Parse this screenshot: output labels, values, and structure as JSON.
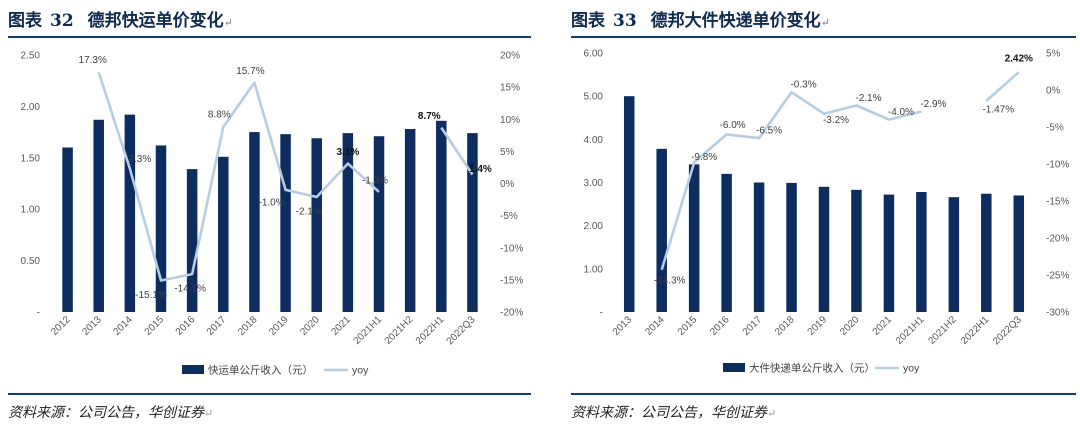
{
  "figures": [
    {
      "id": "fig32",
      "label": "图表",
      "number": "32",
      "title": "德邦快运单价变化",
      "source": "资料来源：公司公告，华创证券",
      "return_mark": "↵"
    },
    {
      "id": "fig33",
      "label": "图表",
      "number": "33",
      "title": "德邦大件快递单价变化",
      "source": "资料来源：公司公告，华创证券",
      "return_mark": "↵"
    }
  ],
  "chart_data": [
    {
      "type": "bar",
      "secondary_type": "line",
      "categories": [
        "2012",
        "2013",
        "2014",
        "2015",
        "2016",
        "2017",
        "2018",
        "2019",
        "2020",
        "2021",
        "2021H1",
        "2021H2",
        "2022H1",
        "2022Q3"
      ],
      "series": [
        {
          "name": "快运单公斤收入（元）",
          "axis": "left",
          "type": "bar",
          "values": [
            1.6,
            1.87,
            1.92,
            1.62,
            1.39,
            1.51,
            1.75,
            1.73,
            1.69,
            1.74,
            1.71,
            1.78,
            1.86,
            1.74
          ]
        },
        {
          "name": "yoy",
          "axis": "right",
          "type": "line",
          "unit": "%",
          "values": [
            null,
            17.3,
            2.3,
            -15.1,
            -14.1,
            8.8,
            15.7,
            -1.0,
            -2.1,
            3.1,
            -1.3,
            null,
            8.7,
            1.4
          ],
          "segments": [
            [
              1,
              10
            ],
            [
              12,
              13
            ]
          ]
        }
      ],
      "data_labels": [
        {
          "index": 1,
          "text": "17.3%",
          "bold": false
        },
        {
          "index": 2,
          "text": "2.3%",
          "bold": false
        },
        {
          "index": 3,
          "text": "-15.1%",
          "bold": false
        },
        {
          "index": 4,
          "text": "-14.1%",
          "bold": false
        },
        {
          "index": 5,
          "text": "8.8%",
          "bold": false
        },
        {
          "index": 6,
          "text": "15.7%",
          "bold": false
        },
        {
          "index": 7,
          "text": "-1.0%",
          "bold": false
        },
        {
          "index": 8,
          "text": "-2.1%",
          "bold": false
        },
        {
          "index": 9,
          "text": "3.1%",
          "bold": true
        },
        {
          "index": 10,
          "text": "-1.3%",
          "bold": false
        },
        {
          "index": 12,
          "text": "8.7%",
          "bold": true
        },
        {
          "index": 13,
          "text": "1.4%",
          "bold": true
        }
      ],
      "y_left": {
        "min": 0,
        "max": 2.5,
        "ticks": [
          "-",
          "0.50",
          "1.00",
          "1.50",
          "2.00",
          "2.50"
        ]
      },
      "y_right": {
        "min": -20,
        "max": 20,
        "ticks": [
          "-20%",
          "-15%",
          "-10%",
          "-5%",
          "0%",
          "5%",
          "10%",
          "15%",
          "20%"
        ]
      },
      "legend": {
        "bar": "快运单公斤收入（元）",
        "line": "yoy"
      },
      "colors": {
        "bar": "#0d2d5e",
        "line": "#b6cde3"
      }
    },
    {
      "type": "bar",
      "secondary_type": "line",
      "categories": [
        "2013",
        "2014",
        "2015",
        "2016",
        "2017",
        "2018",
        "2019",
        "2020",
        "2021",
        "2021H1",
        "2021H2",
        "2022H1",
        "2022Q3"
      ],
      "series": [
        {
          "name": "大件快递单公斤收入（元）",
          "axis": "left",
          "type": "bar",
          "values": [
            5.0,
            3.78,
            3.42,
            3.2,
            3.0,
            2.99,
            2.9,
            2.83,
            2.72,
            2.78,
            2.66,
            2.74,
            2.7
          ]
        },
        {
          "name": "yoy",
          "axis": "right",
          "type": "line",
          "unit": "%",
          "values": [
            null,
            -24.3,
            -9.8,
            -6.0,
            -6.5,
            -0.3,
            -3.2,
            -2.1,
            -4.0,
            -2.9,
            null,
            -1.47,
            2.42
          ],
          "segments": [
            [
              1,
              9
            ],
            [
              11,
              12
            ]
          ]
        }
      ],
      "data_labels": [
        {
          "index": 1,
          "text": "-24.3%",
          "bold": false
        },
        {
          "index": 2,
          "text": "-9.8%",
          "bold": false
        },
        {
          "index": 3,
          "text": "-6.0%",
          "bold": false
        },
        {
          "index": 4,
          "text": "-6.5%",
          "bold": false
        },
        {
          "index": 5,
          "text": "-0.3%",
          "bold": false
        },
        {
          "index": 6,
          "text": "-3.2%",
          "bold": false
        },
        {
          "index": 7,
          "text": "-2.1%",
          "bold": false
        },
        {
          "index": 8,
          "text": "-4.0%",
          "bold": false
        },
        {
          "index": 9,
          "text": "-2.9%",
          "bold": false
        },
        {
          "index": 11,
          "text": "-1.47%",
          "bold": false
        },
        {
          "index": 12,
          "text": "2.42%",
          "bold": true
        }
      ],
      "y_left": {
        "min": 0,
        "max": 6,
        "ticks": [
          "-",
          "1.00",
          "2.00",
          "3.00",
          "4.00",
          "5.00",
          "6.00"
        ]
      },
      "y_right": {
        "min": -30,
        "max": 5,
        "ticks": [
          "-30%",
          "-25%",
          "-20%",
          "-15%",
          "-10%",
          "-5%",
          "0%",
          "5%"
        ]
      },
      "legend": {
        "bar": "大件快递单公斤收入（元）",
        "line": "yoy"
      },
      "colors": {
        "bar": "#0d2d5e",
        "line": "#b6cde3"
      }
    }
  ]
}
